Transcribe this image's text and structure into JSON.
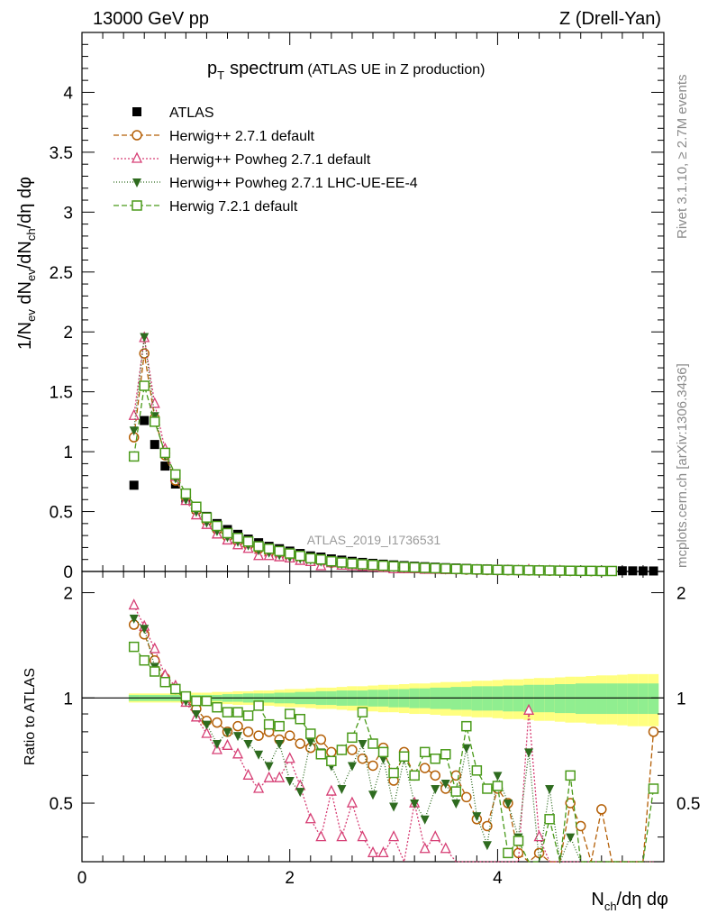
{
  "header": {
    "left": "13000 GeV pp",
    "right": "Z (Drell-Yan)"
  },
  "side_labels": {
    "rivet": "Rivet 3.1.10, ≥ 2.7M events",
    "mcplots": "mcplots.cern.ch [arXiv:1306.3436]"
  },
  "chart_data": {
    "type": "scatter",
    "title_main": "p",
    "title_sub": "T",
    "title_rest": "spectrum",
    "title_note": "(ATLAS UE in Z production)",
    "analysis_id": "ATLAS_2019_I1736531",
    "xlabel": {
      "a": "N",
      "b": "ch",
      "c": "/dη dφ"
    },
    "ylabel": {
      "a": "1/N",
      "b": "ev",
      "c": " dN",
      "d": "ev",
      "e": "/dN",
      "f": "ch",
      "g": "/dη dφ"
    },
    "ratio_ylabel": "Ratio to ATLAS",
    "xlim": [
      0,
      5.6
    ],
    "ylim": [
      0,
      4.5
    ],
    "ratio_ylim": [
      0.34,
      2.3
    ],
    "x_ticks": [
      "0",
      "2",
      "4"
    ],
    "y_ticks": [
      "0",
      "0.5",
      "1",
      "1.5",
      "2",
      "2.5",
      "3",
      "3.5",
      "4"
    ],
    "ratio_ticks": [
      "0.5",
      "1",
      "2"
    ],
    "x": [
      0.5,
      0.6,
      0.7,
      0.8,
      0.9,
      1.0,
      1.1,
      1.2,
      1.3,
      1.4,
      1.5,
      1.6,
      1.7,
      1.8,
      1.9,
      2.0,
      2.1,
      2.2,
      2.3,
      2.4,
      2.5,
      2.6,
      2.7,
      2.8,
      2.9,
      3.0,
      3.1,
      3.2,
      3.3,
      3.4,
      3.5,
      3.6,
      3.7,
      3.8,
      3.9,
      4.0,
      4.1,
      4.2,
      4.3,
      4.4,
      4.5,
      4.6,
      4.7,
      4.8,
      4.9,
      5.0,
      5.1,
      5.2,
      5.3,
      5.4,
      5.5
    ],
    "legend": [
      "ATLAS",
      "Herwig++ 2.7.1 default",
      "Herwig++ Powheg 2.7.1 default",
      "Herwig++ Powheg 2.7.1 LHC-UE-EE-4",
      "Herwig 7.2.1 default"
    ],
    "series": [
      {
        "name": "ATLAS",
        "marker": "square-filled",
        "color": "#000000",
        "values": [
          0.72,
          1.26,
          1.06,
          0.88,
          0.73,
          0.61,
          0.52,
          0.46,
          0.4,
          0.35,
          0.31,
          0.27,
          0.24,
          0.21,
          0.19,
          0.17,
          0.15,
          0.13,
          0.12,
          0.105,
          0.095,
          0.085,
          0.076,
          0.068,
          0.061,
          0.055,
          0.049,
          0.044,
          0.04,
          0.036,
          0.032,
          0.029,
          0.026,
          0.023,
          0.021,
          0.019,
          0.017,
          0.015,
          0.014,
          0.012,
          0.011,
          0.01,
          0.009,
          0.008,
          0.007,
          0.0065,
          0.006,
          0.0055,
          0.005,
          0.0045,
          0.004
        ],
        "ratio": [
          1,
          1,
          1,
          1,
          1,
          1,
          1,
          1,
          1,
          1,
          1,
          1,
          1,
          1,
          1,
          1,
          1,
          1,
          1,
          1,
          1,
          1,
          1,
          1,
          1,
          1,
          1,
          1,
          1,
          1,
          1,
          1,
          1,
          1,
          1,
          1,
          1,
          1,
          1,
          1,
          1,
          1,
          1,
          1,
          1,
          1,
          1,
          1,
          1,
          1,
          1
        ]
      },
      {
        "name": "Herwig++ 2.7.1 default",
        "marker": "circle-open",
        "color": "#b45f06",
        "dash": "6,3",
        "values": [
          1.12,
          1.82,
          1.28,
          0.97,
          0.76,
          0.62,
          0.51,
          0.42,
          0.35,
          0.29,
          0.25,
          0.22,
          0.19,
          0.16,
          0.14,
          0.12,
          0.11,
          0.095,
          0.085,
          0.074,
          0.065,
          0.058,
          0.052,
          0.046,
          0.041,
          0.037,
          0.033,
          0.029,
          0.026,
          0.023,
          0.02,
          0.018,
          0.016,
          0.014,
          0.012,
          0.011,
          0.01,
          0.009,
          0.008,
          0.007,
          0.006,
          0.005,
          0.004,
          0.004,
          0.003,
          0.003,
          0.0,
          0.0,
          0.0,
          0.0,
          0.0
        ],
        "ratio": [
          1.62,
          1.52,
          1.28,
          1.14,
          1.06,
          0.98,
          0.93,
          0.86,
          0.85,
          0.8,
          0.83,
          0.8,
          0.78,
          0.8,
          0.76,
          0.78,
          0.74,
          0.72,
          0.76,
          0.7,
          0.71,
          0.71,
          0.67,
          0.64,
          0.72,
          0.58,
          0.7,
          0.6,
          0.63,
          0.6,
          0.55,
          0.6,
          0.52,
          0.45,
          0.43,
          0.55,
          0.5,
          0.36,
          0.34,
          0.36,
          0.34,
          0.34,
          0.5,
          0.43,
          0.34,
          0.48,
          0.34,
          0.34,
          0.34,
          0.34,
          0.8
        ]
      },
      {
        "name": "Herwig++ Powheg 2.7.1 default",
        "marker": "triangle-open",
        "color": "#d63e74",
        "dash": "2,2",
        "values": [
          1.3,
          1.95,
          1.4,
          1.02,
          0.79,
          0.59,
          0.47,
          0.39,
          0.31,
          0.26,
          0.22,
          0.19,
          0.13,
          0.13,
          0.12,
          0.11,
          0.09,
          0.08,
          0.045,
          0.07,
          0.05,
          0.045,
          0.04,
          0.035,
          0.03,
          0.02,
          0.02,
          0.02,
          0.015,
          0.015,
          0.012,
          0.012,
          0.012,
          0.01,
          0.008,
          0.008,
          0.006,
          0.005,
          0.012,
          0.004,
          0.003,
          0.003,
          0.0,
          0.0,
          0.0,
          0.0,
          0.0,
          0.0,
          0.0,
          0.0,
          0.0
        ],
        "ratio": [
          1.84,
          1.6,
          1.38,
          1.16,
          1.08,
          0.97,
          0.88,
          0.79,
          0.71,
          0.73,
          0.69,
          0.6,
          0.55,
          0.59,
          0.59,
          0.67,
          0.56,
          0.45,
          0.4,
          0.54,
          0.4,
          0.5,
          0.4,
          0.36,
          0.36,
          0.4,
          0.34,
          0.5,
          0.37,
          0.4,
          0.37,
          0.34,
          0.34,
          0.34,
          0.34,
          0.34,
          0.34,
          0.34,
          0.92,
          0.4,
          0.34,
          0.34,
          0.34,
          0.34,
          0.34,
          0.34,
          0.34,
          0.34,
          0.34,
          0.34,
          0.34
        ]
      },
      {
        "name": "Herwig++ Powheg 2.7.1 LHC-UE-EE-4",
        "marker": "triangle-down-filled",
        "color": "#2e6b1f",
        "dash": "1,2",
        "values": [
          1.18,
          1.96,
          1.3,
          0.97,
          0.78,
          0.6,
          0.5,
          0.41,
          0.34,
          0.29,
          0.25,
          0.22,
          0.18,
          0.16,
          0.14,
          0.12,
          0.11,
          0.1,
          0.085,
          0.074,
          0.065,
          0.058,
          0.052,
          0.046,
          0.041,
          0.036,
          0.032,
          0.028,
          0.025,
          0.022,
          0.02,
          0.018,
          0.016,
          0.014,
          0.012,
          0.011,
          0.01,
          0.009,
          0.008,
          0.007,
          0.006,
          0.005,
          0.004,
          0.004,
          0.003,
          0.003,
          0.0,
          0.0,
          0.0,
          0.0,
          0.0
        ],
        "ratio": [
          1.69,
          1.58,
          1.23,
          1.11,
          1.07,
          0.98,
          0.9,
          0.84,
          0.74,
          0.8,
          0.78,
          0.74,
          0.69,
          0.64,
          0.74,
          0.58,
          0.54,
          0.75,
          0.7,
          0.64,
          0.55,
          0.64,
          0.74,
          0.53,
          0.67,
          0.49,
          0.67,
          0.5,
          0.45,
          0.55,
          0.57,
          0.5,
          0.72,
          0.46,
          0.38,
          0.6,
          0.5,
          0.4,
          0.7,
          0.34,
          0.55,
          0.34,
          0.4,
          0.34,
          0.34,
          0.34,
          0.34,
          0.34,
          0.34,
          0.34,
          0.34
        ]
      },
      {
        "name": "Herwig 7.2.1 default",
        "marker": "square-open",
        "color": "#4a9a1a",
        "dash": "6,3",
        "values": [
          0.96,
          1.55,
          1.25,
          0.99,
          0.81,
          0.65,
          0.54,
          0.45,
          0.38,
          0.32,
          0.28,
          0.25,
          0.21,
          0.19,
          0.17,
          0.15,
          0.13,
          0.11,
          0.1,
          0.085,
          0.075,
          0.067,
          0.06,
          0.054,
          0.048,
          0.043,
          0.038,
          0.034,
          0.03,
          0.027,
          0.024,
          0.021,
          0.019,
          0.017,
          0.015,
          0.013,
          0.012,
          0.011,
          0.01,
          0.009,
          0.008,
          0.007,
          0.006,
          0.005,
          0.005,
          0.004,
          0.004,
          0.0,
          0.0,
          0.0,
          0.0
        ],
        "ratio": [
          1.4,
          1.28,
          1.19,
          1.11,
          1.06,
          1.01,
          0.98,
          0.98,
          0.94,
          0.91,
          0.91,
          0.89,
          0.95,
          0.84,
          0.83,
          0.9,
          0.87,
          0.79,
          0.69,
          0.66,
          0.71,
          0.77,
          0.91,
          0.74,
          0.7,
          0.61,
          0.68,
          0.6,
          0.7,
          0.67,
          0.69,
          0.54,
          0.83,
          0.62,
          0.55,
          0.56,
          0.36,
          0.39,
          0.34,
          0.34,
          0.45,
          0.34,
          0.6,
          0.34,
          0.34,
          0.34,
          0.34,
          0.34,
          0.34,
          0.34,
          0.55
        ]
      }
    ],
    "uncertainty_bands": {
      "inner_color": "#90ee90",
      "outer_color": "#ffff80",
      "inner_halfwidth": [
        0.02,
        0.02,
        0.02,
        0.02,
        0.02,
        0.02,
        0.02,
        0.02,
        0.02,
        0.025,
        0.025,
        0.03,
        0.03,
        0.03,
        0.035,
        0.035,
        0.04,
        0.04,
        0.045,
        0.045,
        0.05,
        0.05,
        0.05,
        0.055,
        0.055,
        0.06,
        0.06,
        0.065,
        0.065,
        0.07,
        0.07,
        0.075,
        0.075,
        0.08,
        0.08,
        0.08,
        0.085,
        0.085,
        0.09,
        0.09,
        0.09,
        0.095,
        0.095,
        0.1,
        0.1,
        0.1,
        0.1,
        0.1,
        0.1,
        0.1,
        0.1
      ],
      "outer_halfwidth": [
        0.03,
        0.03,
        0.03,
        0.03,
        0.03,
        0.03,
        0.035,
        0.035,
        0.04,
        0.04,
        0.045,
        0.045,
        0.05,
        0.05,
        0.055,
        0.06,
        0.06,
        0.065,
        0.07,
        0.07,
        0.075,
        0.08,
        0.08,
        0.085,
        0.09,
        0.09,
        0.095,
        0.1,
        0.1,
        0.105,
        0.11,
        0.11,
        0.115,
        0.12,
        0.12,
        0.125,
        0.13,
        0.13,
        0.135,
        0.14,
        0.14,
        0.145,
        0.15,
        0.15,
        0.155,
        0.16,
        0.16,
        0.165,
        0.17,
        0.17,
        0.17
      ]
    }
  }
}
